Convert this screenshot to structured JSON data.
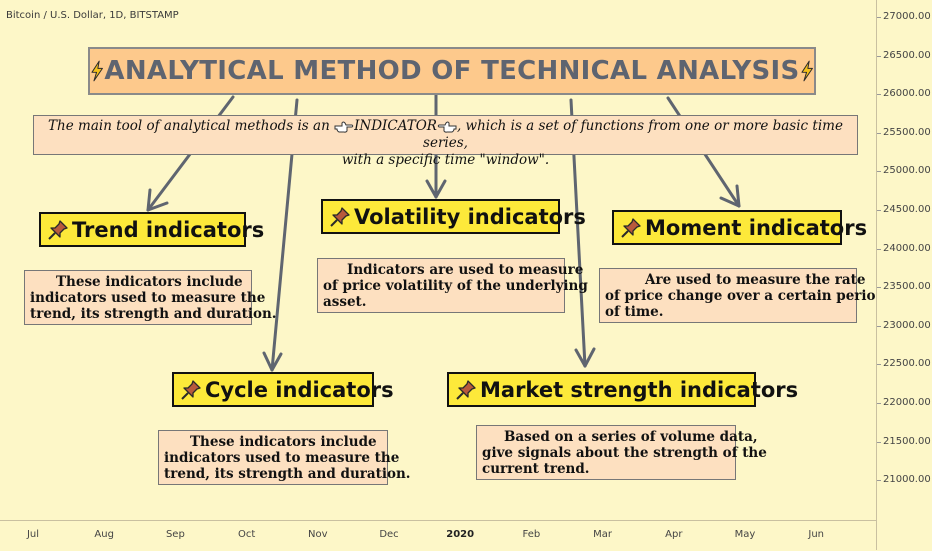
{
  "chart_header": "Bitcoin / U.S. Dollar, 1D, BITSTAMP",
  "y_axis": {
    "ticks": [
      "27000.00",
      "26500.00",
      "26000.00",
      "25500.00",
      "25000.00",
      "24500.00",
      "24000.00",
      "23500.00",
      "23000.00",
      "22500.00",
      "22000.00",
      "21500.00",
      "21000.00"
    ]
  },
  "x_axis": {
    "ticks": [
      "Jul",
      "Aug",
      "Sep",
      "Oct",
      "Nov",
      "Dec",
      "2020",
      "Feb",
      "Mar",
      "Apr",
      "May",
      "Jun"
    ]
  },
  "title": "ANALYTICAL METHOD OF TECHNICAL ANALYSIS",
  "intro": {
    "before": "The main tool of analytical methods is an ",
    "keyword": "INDICATOR",
    "after": ", which is a set of functions from one or more basic time series,",
    "line2": "with a specific time \"window\"."
  },
  "indicators": [
    {
      "title": "Trend indicators",
      "lines": [
        "These indicators include",
        "indicators used to measure the",
        "trend, its strength and duration."
      ]
    },
    {
      "title": "Volatility indicators",
      "lines": [
        "Indicators are used to  measure",
        "of price volatility of the underlying",
        "asset."
      ]
    },
    {
      "title": "Moment indicators",
      "lines": [
        "Are used to measure the rate",
        "of price change over a certain period",
        "of time."
      ]
    },
    {
      "title": "Cycle indicators",
      "lines": [
        "These indicators include",
        "indicators used to measure the",
        "trend, its strength and duration."
      ]
    },
    {
      "title": "Market strength indicators",
      "lines": [
        "Based on a series of volume data,",
        "give signals about the strength of the",
        "current trend."
      ]
    }
  ],
  "colors": {
    "background": "#fdf7c8",
    "title_box": "#fdc98c",
    "description_box": "#fde0c0",
    "indicator_title_box": "#fde93a",
    "arrow": "#5f6570"
  },
  "icons": {
    "title": "lightning-icon",
    "intro": "pointing-hand-icon",
    "indicator": "pushpin-icon"
  }
}
